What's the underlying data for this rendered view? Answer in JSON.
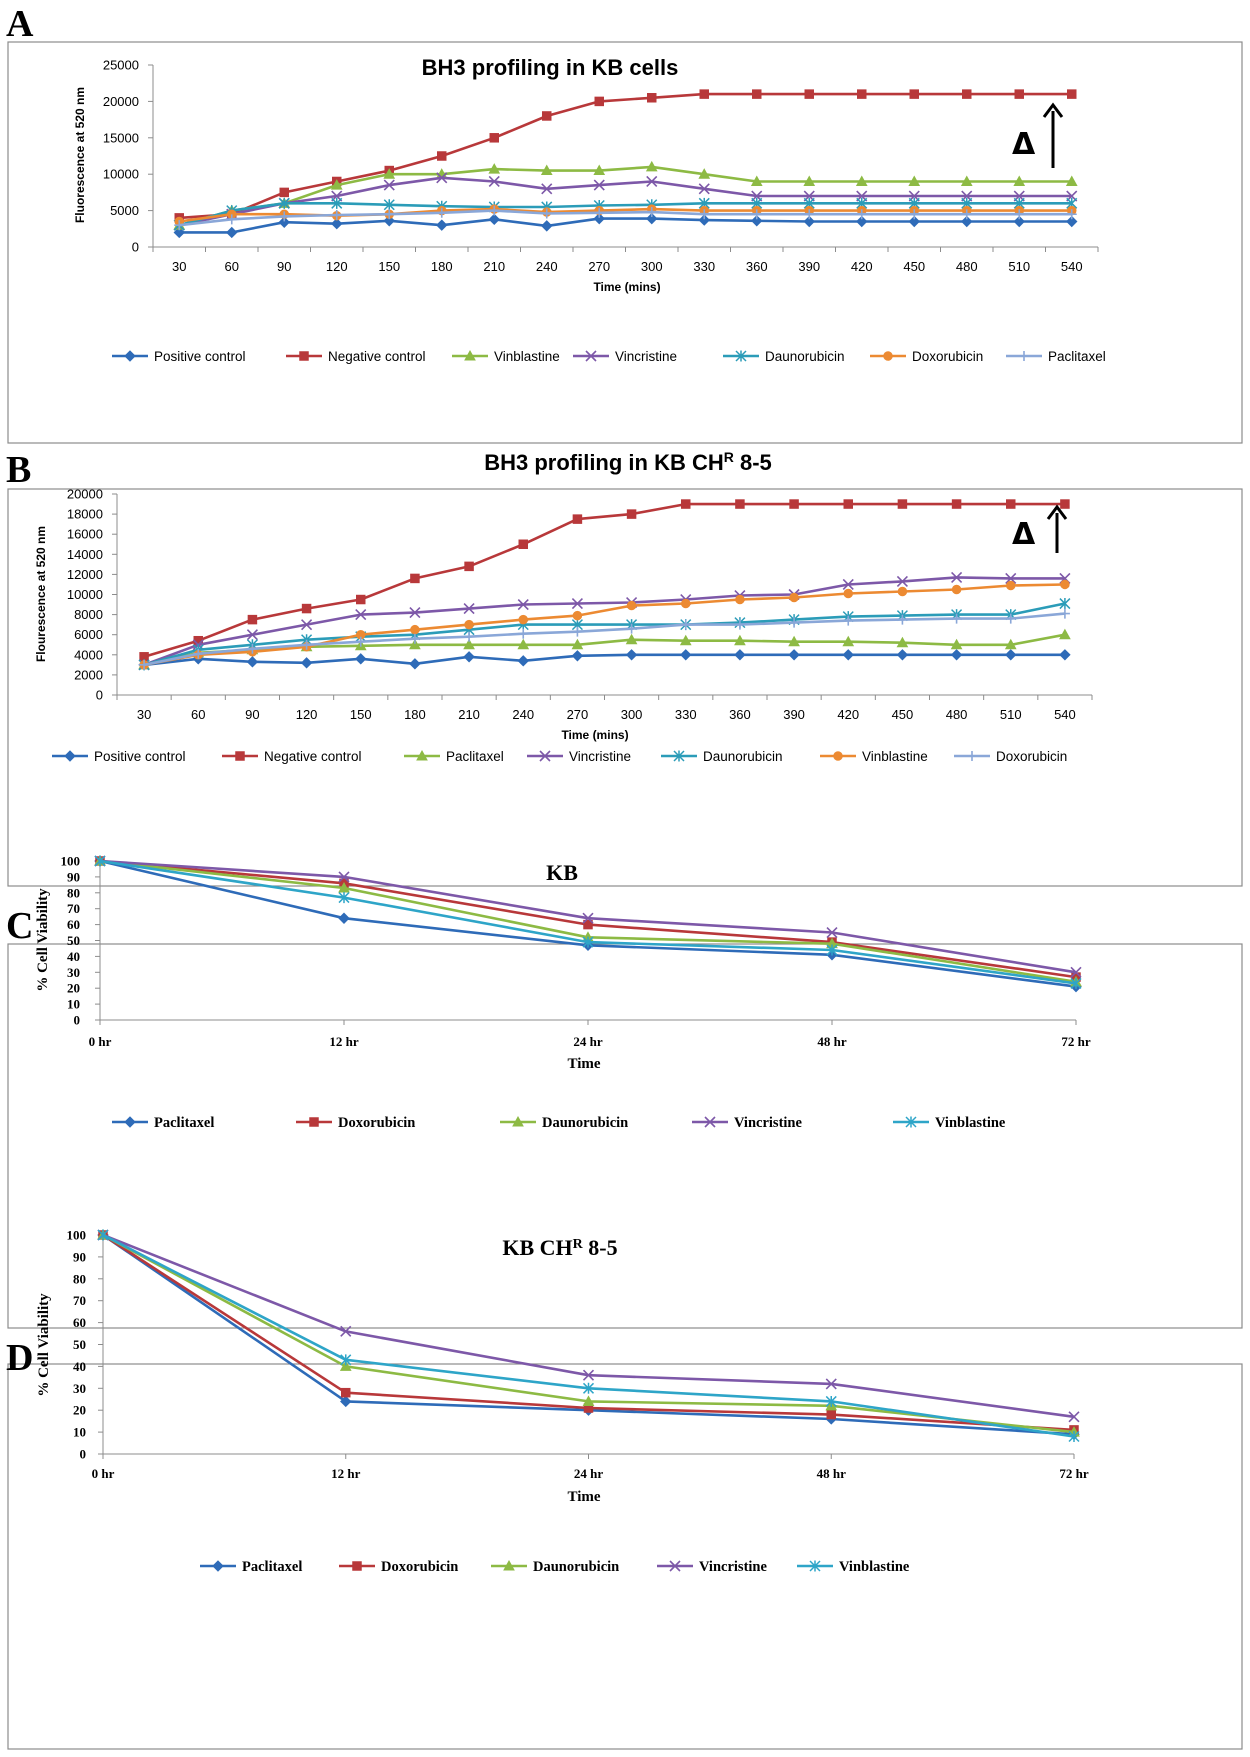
{
  "panel_labels": [
    "A",
    "B",
    "C",
    "D"
  ],
  "colors": {
    "Positive control": "#2e6bb8",
    "Negative control": "#b8383a",
    "Vinblastine_AB": "#8dba44",
    "Paclitaxel_AB": "#8dba44",
    "Vincristine": "#7d58a8",
    "Daunorubicin_AB": "#2b9cb8",
    "Doxorubicin_A": "#ec8a32",
    "Vinblastine_B": "#ec8a32",
    "Paclitaxel_A": "#8aa7d8",
    "Doxorubicin_B": "#8aa7d8"
  },
  "chart_data": [
    {
      "panel": "A",
      "type": "line",
      "title": "BH3 profiling in KB cells",
      "xlabel": "Time (mins)",
      "ylabel": "Fluorescence at 520 nm",
      "ylim": [
        0,
        25000
      ],
      "yticks": [
        "0",
        "5000",
        "10000",
        "15000",
        "20000",
        "25000"
      ],
      "categories": [
        "30",
        "60",
        "90",
        "120",
        "150",
        "180",
        "210",
        "240",
        "270",
        "300",
        "330",
        "360",
        "390",
        "420",
        "450",
        "480",
        "510",
        "540"
      ],
      "annotation": "Δ",
      "series": [
        {
          "name": "Positive control",
          "color": "#2e6bb8",
          "marker": "diamond",
          "values": [
            2000,
            2000,
            3400,
            3200,
            3600,
            3000,
            3800,
            2900,
            3900,
            3900,
            3700,
            3600,
            3500,
            3500,
            3500,
            3500,
            3500,
            3500
          ]
        },
        {
          "name": "Negative control",
          "color": "#b8383a",
          "marker": "square",
          "values": [
            4000,
            4500,
            7500,
            9000,
            10500,
            12500,
            15000,
            18000,
            20000,
            20500,
            21000,
            21000,
            21000,
            21000,
            21000,
            21000,
            21000,
            21000
          ]
        },
        {
          "name": "Vinblastine",
          "color": "#8dba44",
          "marker": "triangle",
          "values": [
            3000,
            5000,
            6000,
            8500,
            10000,
            10000,
            10700,
            10500,
            10500,
            11000,
            10000,
            9000,
            9000,
            9000,
            9000,
            9000,
            9000,
            9000
          ]
        },
        {
          "name": "Vincristine",
          "color": "#7d58a8",
          "marker": "x",
          "values": [
            3000,
            4500,
            6000,
            7000,
            8500,
            9500,
            9000,
            8000,
            8500,
            9000,
            8000,
            7000,
            7000,
            7000,
            7000,
            7000,
            7000,
            7000
          ]
        },
        {
          "name": "Daunorubicin",
          "color": "#2b9cb8",
          "marker": "star",
          "values": [
            3000,
            5000,
            6000,
            6000,
            5800,
            5600,
            5500,
            5500,
            5700,
            5800,
            6000,
            6000,
            6000,
            6000,
            6000,
            6000,
            6000,
            6000
          ]
        },
        {
          "name": "Doxorubicin",
          "color": "#ec8a32",
          "marker": "circle",
          "values": [
            3500,
            4500,
            4500,
            4300,
            4500,
            5000,
            5200,
            4800,
            5000,
            5200,
            5000,
            5000,
            5000,
            5000,
            5000,
            5000,
            5000,
            5000
          ]
        },
        {
          "name": "Paclitaxel",
          "color": "#8aa7d8",
          "marker": "plus",
          "values": [
            3000,
            3800,
            4200,
            4400,
            4500,
            4700,
            5000,
            4600,
            4700,
            4800,
            4500,
            4500,
            4500,
            4500,
            4500,
            4500,
            4500,
            4500
          ]
        }
      ]
    },
    {
      "panel": "B",
      "type": "line",
      "title": "BH3 profiling in KB CH",
      "title_sup": "R",
      "title_suffix": " 8-5",
      "xlabel": "Time (mins)",
      "ylabel": "Flourescence at 520 nm",
      "ylim": [
        0,
        20000
      ],
      "yticks": [
        "0",
        "2000",
        "4000",
        "6000",
        "8000",
        "10000",
        "12000",
        "14000",
        "16000",
        "18000",
        "20000"
      ],
      "categories": [
        "30",
        "60",
        "90",
        "120",
        "150",
        "180",
        "210",
        "240",
        "270",
        "300",
        "330",
        "360",
        "390",
        "420",
        "450",
        "480",
        "510",
        "540"
      ],
      "annotation": "Δ",
      "series": [
        {
          "name": "Positive control",
          "color": "#2e6bb8",
          "marker": "diamond",
          "values": [
            3000,
            3600,
            3300,
            3200,
            3600,
            3100,
            3800,
            3400,
            3900,
            4000,
            4000,
            4000,
            4000,
            4000,
            4000,
            4000,
            4000,
            4000
          ]
        },
        {
          "name": "Negative control",
          "color": "#b8383a",
          "marker": "square",
          "values": [
            3800,
            5400,
            7500,
            8600,
            9500,
            11600,
            12800,
            15000,
            17500,
            18000,
            19000,
            19000,
            19000,
            19000,
            19000,
            19000,
            19000,
            19000
          ]
        },
        {
          "name": "Paclitaxel",
          "color": "#8dba44",
          "marker": "triangle",
          "values": [
            3000,
            4200,
            4500,
            4800,
            4900,
            5000,
            5000,
            5000,
            5000,
            5500,
            5400,
            5400,
            5300,
            5300,
            5200,
            5000,
            5000,
            6000
          ]
        },
        {
          "name": "Vincristine",
          "color": "#7d58a8",
          "marker": "x",
          "values": [
            3000,
            5000,
            6000,
            7000,
            8000,
            8200,
            8600,
            9000,
            9100,
            9200,
            9500,
            9900,
            10000,
            11000,
            11300,
            11700,
            11600,
            11600
          ]
        },
        {
          "name": "Daunorubicin",
          "color": "#2b9cb8",
          "marker": "star",
          "values": [
            3000,
            4500,
            5000,
            5500,
            5800,
            6000,
            6500,
            7000,
            7000,
            7000,
            7000,
            7200,
            7500,
            7800,
            7900,
            8000,
            8000,
            9100
          ]
        },
        {
          "name": "Vinblastine",
          "color": "#ec8a32",
          "marker": "circle",
          "values": [
            3000,
            4000,
            4300,
            4800,
            6000,
            6500,
            7000,
            7500,
            7900,
            8900,
            9100,
            9500,
            9700,
            10100,
            10300,
            10500,
            10900,
            11000
          ]
        },
        {
          "name": "Doxorubicin",
          "color": "#8aa7d8",
          "marker": "plus",
          "values": [
            3000,
            4100,
            4600,
            5000,
            5300,
            5600,
            5800,
            6100,
            6300,
            6600,
            7000,
            7000,
            7200,
            7400,
            7500,
            7600,
            7600,
            8100
          ]
        }
      ]
    },
    {
      "panel": "C",
      "type": "line",
      "title": "KB",
      "xlabel": "Time",
      "ylabel": "% Cell Viability",
      "ylim": [
        0,
        100
      ],
      "yticks": [
        "0",
        "10",
        "20",
        "30",
        "40",
        "50",
        "60",
        "70",
        "80",
        "90",
        "100"
      ],
      "categories": [
        "0 hr",
        "12 hr",
        "24 hr",
        "48 hr",
        "72 hr"
      ],
      "series": [
        {
          "name": "Paclitaxel",
          "color": "#2e6bb8",
          "marker": "diamond",
          "values": [
            100,
            64,
            47,
            41,
            21
          ]
        },
        {
          "name": "Doxorubicin",
          "color": "#b8383a",
          "marker": "square",
          "values": [
            100,
            86,
            60,
            49,
            27
          ]
        },
        {
          "name": "Daunorubicin",
          "color": "#8dba44",
          "marker": "triangle",
          "values": [
            100,
            83,
            52,
            48,
            24
          ]
        },
        {
          "name": "Vincristine",
          "color": "#7d58a8",
          "marker": "x",
          "values": [
            100,
            90,
            64,
            55,
            30
          ]
        },
        {
          "name": "Vinblastine",
          "color": "#2ea5c8",
          "marker": "star",
          "values": [
            100,
            77,
            49,
            44,
            23
          ]
        }
      ]
    },
    {
      "panel": "D",
      "type": "line",
      "title": "KB CH",
      "title_sup": "R",
      "title_suffix": " 8-5",
      "xlabel": "Time",
      "ylabel": "% Cell Viability",
      "ylim": [
        0,
        100
      ],
      "yticks": [
        "0",
        "10",
        "20",
        "30",
        "40",
        "50",
        "60",
        "70",
        "80",
        "90",
        "100"
      ],
      "categories": [
        "0 hr",
        "12 hr",
        "24 hr",
        "48 hr",
        "72 hr"
      ],
      "series": [
        {
          "name": "Paclitaxel",
          "color": "#2e6bb8",
          "marker": "diamond",
          "values": [
            100,
            24,
            20,
            16,
            9
          ]
        },
        {
          "name": "Doxorubicin",
          "color": "#b8383a",
          "marker": "square",
          "values": [
            100,
            28,
            21,
            18,
            11
          ]
        },
        {
          "name": "Daunorubicin",
          "color": "#8dba44",
          "marker": "triangle",
          "values": [
            100,
            40,
            24,
            22,
            10
          ]
        },
        {
          "name": "Vincristine",
          "color": "#7d58a8",
          "marker": "x",
          "values": [
            100,
            56,
            36,
            32,
            17
          ]
        },
        {
          "name": "Vinblastine",
          "color": "#2ea5c8",
          "marker": "star",
          "values": [
            100,
            43,
            30,
            24,
            8
          ]
        }
      ]
    }
  ]
}
